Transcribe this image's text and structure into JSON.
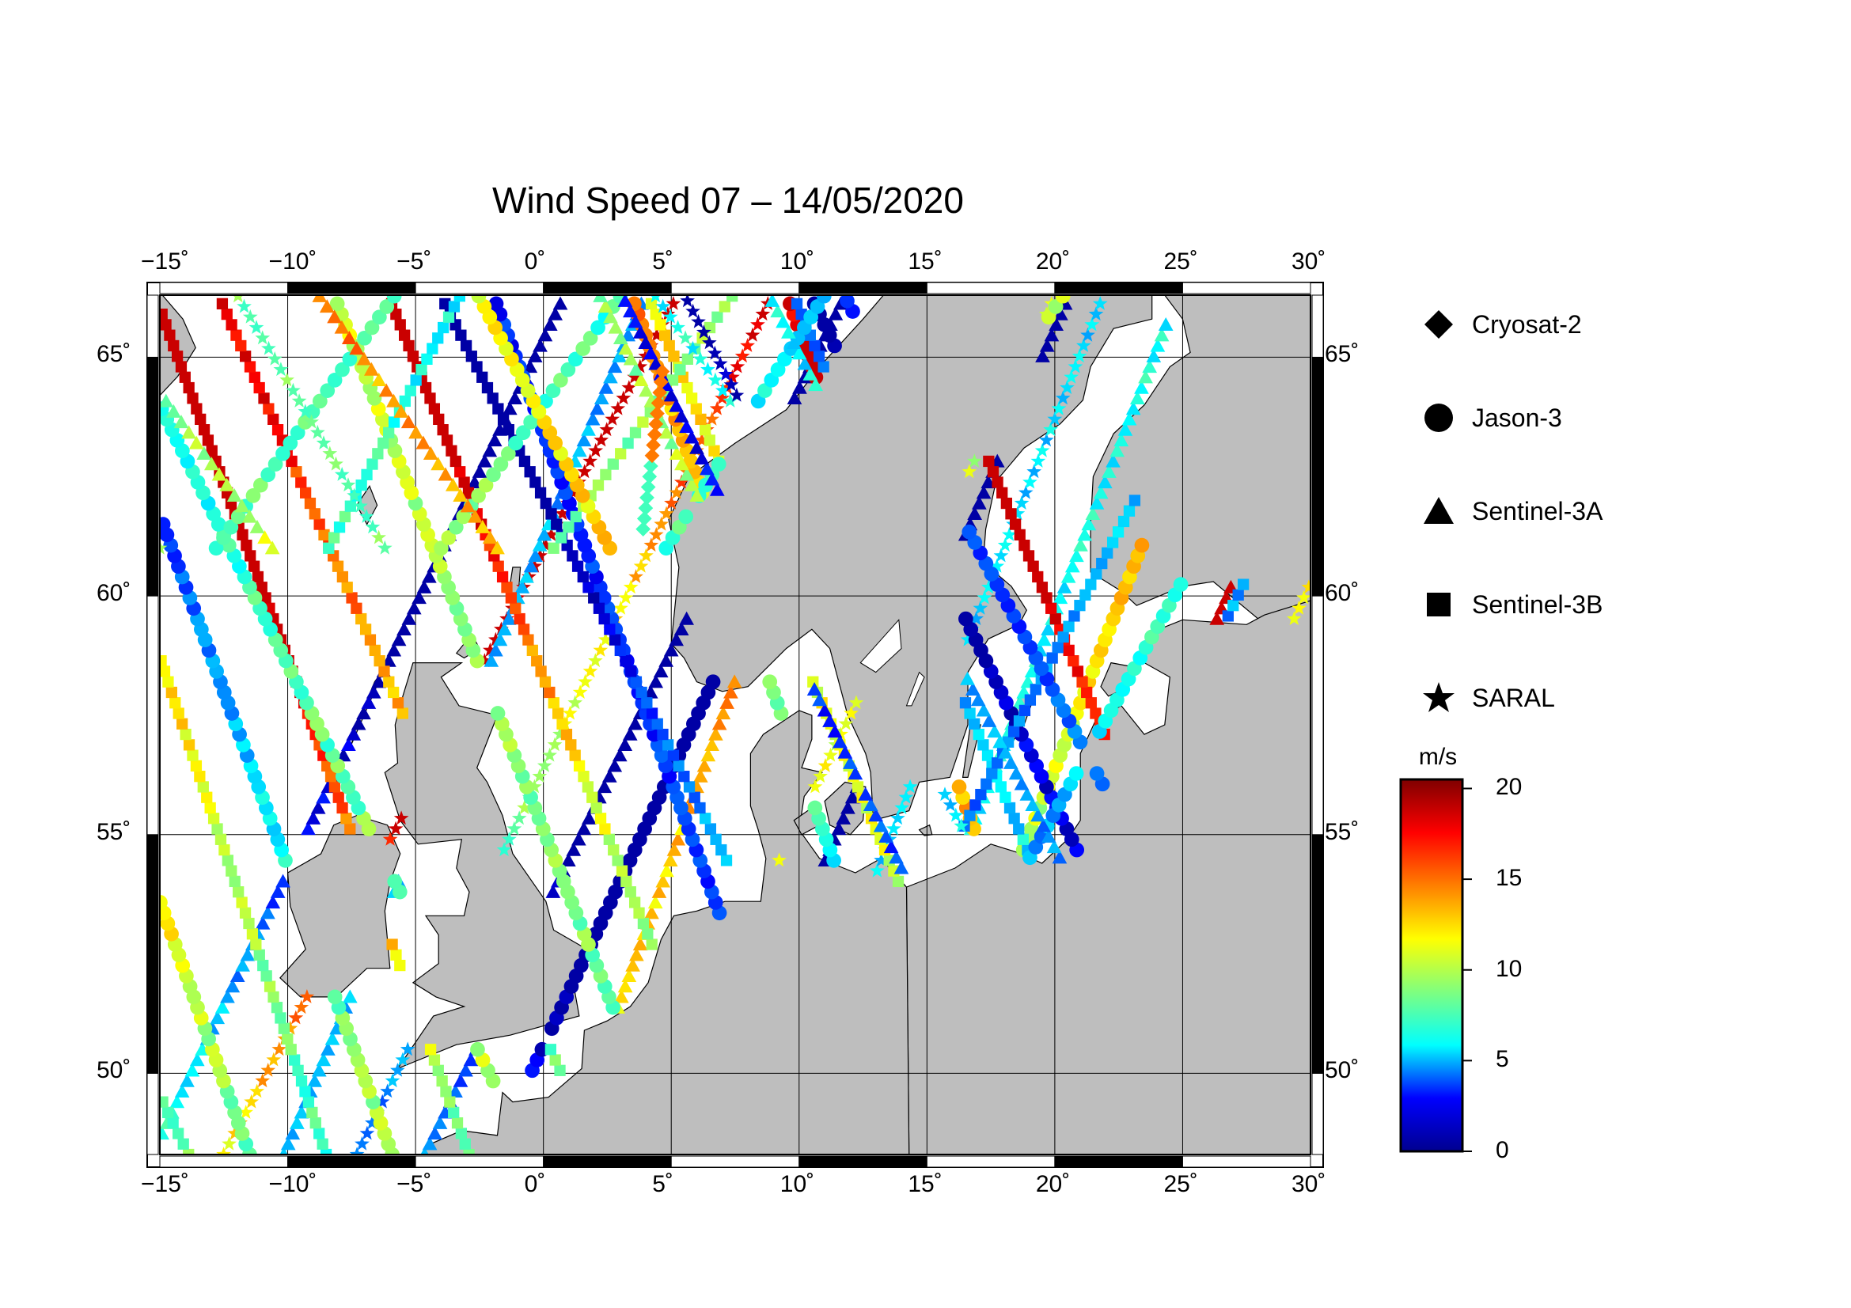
{
  "title": "Wind Speed 07 – 14/05/2020",
  "map": {
    "lon_range": [
      -15,
      30
    ],
    "lat_range": [
      48.3,
      66.3
    ],
    "lon_ticks": [
      "−15˚",
      "−10˚",
      "−5˚",
      "0˚",
      "5˚",
      "10˚",
      "15˚",
      "20˚",
      "25˚",
      "30˚"
    ],
    "lon_values": [
      -15,
      -10,
      -5,
      0,
      5,
      10,
      15,
      20,
      25,
      30
    ],
    "lat_ticks": [
      "50˚",
      "55˚",
      "60˚",
      "65˚"
    ],
    "lat_values": [
      50,
      55,
      60,
      65
    ],
    "land_color": "#bebebe",
    "sea_color": "#ffffff",
    "gridlines": true
  },
  "legend": {
    "items": [
      {
        "label": "Cryosat-2",
        "symbol": "diamond"
      },
      {
        "label": "Jason-3",
        "symbol": "circle"
      },
      {
        "label": "Sentinel-3A",
        "symbol": "triangle"
      },
      {
        "label": "Sentinel-3B",
        "symbol": "square"
      },
      {
        "label": "SARAL",
        "symbol": "star"
      }
    ]
  },
  "colorbar": {
    "unit": "m/s",
    "ticks": [
      "20",
      "15",
      "10",
      "5",
      "0"
    ],
    "tick_values": [
      20,
      15,
      10,
      5,
      0
    ],
    "range": [
      0,
      20.5
    ],
    "colormap": [
      "#00008f",
      "#0000ff",
      "#00ffff",
      "#7fff7f",
      "#ffff00",
      "#ff7f00",
      "#ff0000",
      "#7f0000"
    ]
  }
}
